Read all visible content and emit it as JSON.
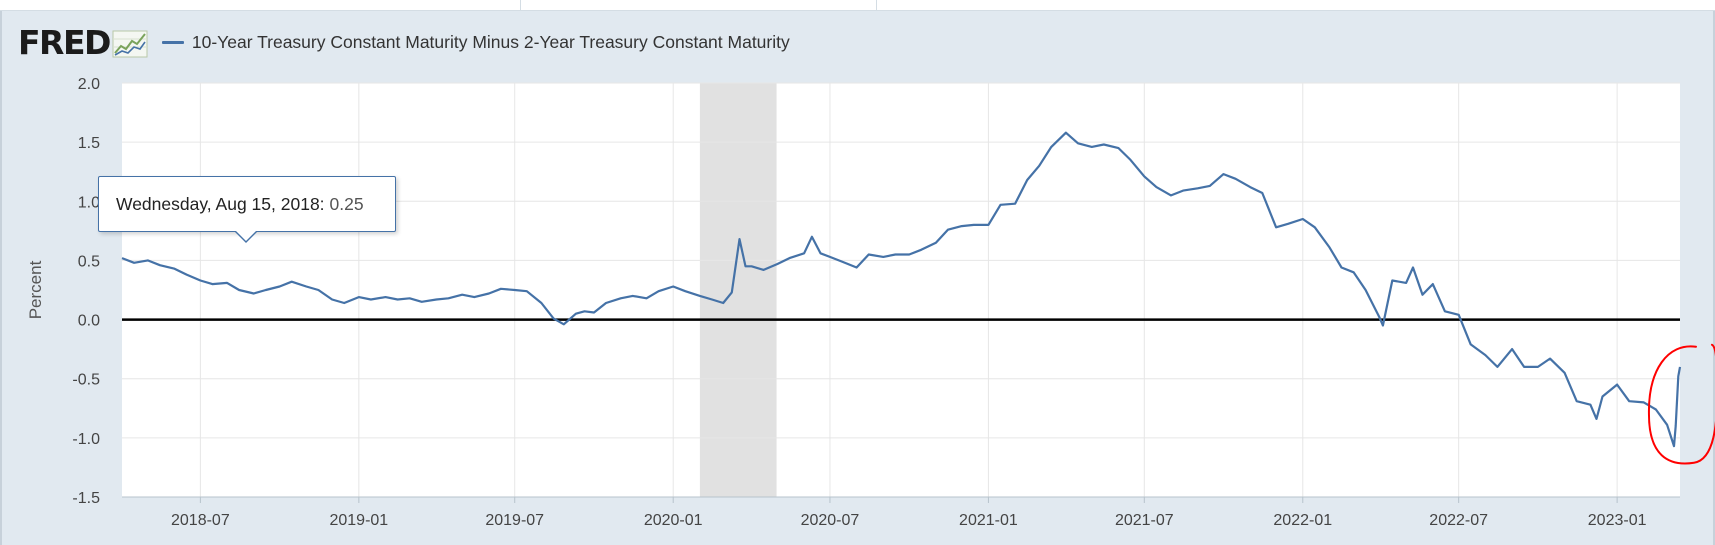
{
  "header": {
    "logo_text": "FRED",
    "series_title": "10-Year Treasury Constant Maturity Minus 2-Year Treasury Constant Maturity"
  },
  "tooltip": {
    "date": "Wednesday, Aug 15, 2018:",
    "value": "0.25"
  },
  "colors": {
    "series": "#4572a7",
    "zero_line": "#000000",
    "recession": "#e1e1e1",
    "annotation": "#ff0000",
    "background": "#e1e9f0"
  },
  "chart_data": {
    "type": "line",
    "title": "10-Year Treasury Constant Maturity Minus 2-Year Treasury Constant Maturity",
    "ylabel": "Percent",
    "xlabel": "",
    "ylim": [
      -1.5,
      2.0
    ],
    "yticks": [
      2.0,
      1.5,
      1.0,
      0.5,
      0.0,
      -0.5,
      -1.0,
      -1.5
    ],
    "ytick_labels": [
      "2.0",
      "1.5",
      "1.0",
      "0.5",
      "0.0",
      "-0.5",
      "-1.0",
      "-1.5"
    ],
    "xlim": [
      "2018-04-01",
      "2023-03-15"
    ],
    "xticks": [
      "2018-07-01",
      "2019-01-01",
      "2019-07-01",
      "2020-01-01",
      "2020-07-01",
      "2021-01-01",
      "2021-07-01",
      "2022-01-01",
      "2022-07-01",
      "2023-01-01"
    ],
    "xtick_labels": [
      "2018-07",
      "2019-01",
      "2019-07",
      "2020-01",
      "2020-07",
      "2021-01",
      "2021-07",
      "2022-01",
      "2022-07",
      "2023-01"
    ],
    "recession": {
      "start": "2020-02-01",
      "end": "2020-04-30"
    },
    "reference_line": 0.0,
    "series": [
      {
        "name": "10-Year Treasury Constant Maturity Minus 2-Year Treasury Constant Maturity",
        "points": [
          [
            "2018-04-01",
            0.52
          ],
          [
            "2018-04-15",
            0.48
          ],
          [
            "2018-05-01",
            0.5
          ],
          [
            "2018-05-15",
            0.46
          ],
          [
            "2018-06-01",
            0.43
          ],
          [
            "2018-06-15",
            0.38
          ],
          [
            "2018-07-01",
            0.33
          ],
          [
            "2018-07-15",
            0.3
          ],
          [
            "2018-08-01",
            0.31
          ],
          [
            "2018-08-15",
            0.25
          ],
          [
            "2018-09-01",
            0.22
          ],
          [
            "2018-09-15",
            0.25
          ],
          [
            "2018-10-01",
            0.28
          ],
          [
            "2018-10-15",
            0.32
          ],
          [
            "2018-11-01",
            0.28
          ],
          [
            "2018-11-15",
            0.25
          ],
          [
            "2018-12-01",
            0.17
          ],
          [
            "2018-12-15",
            0.14
          ],
          [
            "2019-01-01",
            0.19
          ],
          [
            "2019-01-15",
            0.17
          ],
          [
            "2019-02-01",
            0.19
          ],
          [
            "2019-02-15",
            0.17
          ],
          [
            "2019-03-01",
            0.18
          ],
          [
            "2019-03-15",
            0.15
          ],
          [
            "2019-04-01",
            0.17
          ],
          [
            "2019-04-15",
            0.18
          ],
          [
            "2019-05-01",
            0.21
          ],
          [
            "2019-05-15",
            0.19
          ],
          [
            "2019-06-01",
            0.22
          ],
          [
            "2019-06-15",
            0.26
          ],
          [
            "2019-07-01",
            0.25
          ],
          [
            "2019-07-15",
            0.24
          ],
          [
            "2019-08-01",
            0.14
          ],
          [
            "2019-08-15",
            0.01
          ],
          [
            "2019-08-27",
            -0.04
          ],
          [
            "2019-09-10",
            0.05
          ],
          [
            "2019-09-20",
            0.07
          ],
          [
            "2019-10-01",
            0.06
          ],
          [
            "2019-10-15",
            0.14
          ],
          [
            "2019-11-01",
            0.18
          ],
          [
            "2019-11-15",
            0.2
          ],
          [
            "2019-12-01",
            0.18
          ],
          [
            "2019-12-15",
            0.24
          ],
          [
            "2020-01-01",
            0.28
          ],
          [
            "2020-01-15",
            0.24
          ],
          [
            "2020-02-01",
            0.2
          ],
          [
            "2020-02-15",
            0.17
          ],
          [
            "2020-02-28",
            0.14
          ],
          [
            "2020-03-09",
            0.23
          ],
          [
            "2020-03-18",
            0.68
          ],
          [
            "2020-03-25",
            0.45
          ],
          [
            "2020-04-01",
            0.45
          ],
          [
            "2020-04-15",
            0.42
          ],
          [
            "2020-05-01",
            0.47
          ],
          [
            "2020-05-15",
            0.52
          ],
          [
            "2020-06-01",
            0.56
          ],
          [
            "2020-06-10",
            0.7
          ],
          [
            "2020-06-20",
            0.56
          ],
          [
            "2020-07-01",
            0.53
          ],
          [
            "2020-07-15",
            0.49
          ],
          [
            "2020-08-01",
            0.44
          ],
          [
            "2020-08-15",
            0.55
          ],
          [
            "2020-09-01",
            0.53
          ],
          [
            "2020-09-15",
            0.55
          ],
          [
            "2020-10-01",
            0.55
          ],
          [
            "2020-10-15",
            0.59
          ],
          [
            "2020-11-01",
            0.65
          ],
          [
            "2020-11-15",
            0.76
          ],
          [
            "2020-12-01",
            0.79
          ],
          [
            "2020-12-15",
            0.8
          ],
          [
            "2021-01-01",
            0.8
          ],
          [
            "2021-01-15",
            0.97
          ],
          [
            "2021-02-01",
            0.98
          ],
          [
            "2021-02-15",
            1.18
          ],
          [
            "2021-03-01",
            1.3
          ],
          [
            "2021-03-15",
            1.46
          ],
          [
            "2021-04-01",
            1.58
          ],
          [
            "2021-04-15",
            1.49
          ],
          [
            "2021-05-01",
            1.46
          ],
          [
            "2021-05-15",
            1.48
          ],
          [
            "2021-06-01",
            1.45
          ],
          [
            "2021-06-15",
            1.35
          ],
          [
            "2021-07-01",
            1.21
          ],
          [
            "2021-07-15",
            1.12
          ],
          [
            "2021-08-01",
            1.05
          ],
          [
            "2021-08-15",
            1.09
          ],
          [
            "2021-09-01",
            1.11
          ],
          [
            "2021-09-15",
            1.13
          ],
          [
            "2021-10-01",
            1.23
          ],
          [
            "2021-10-15",
            1.19
          ],
          [
            "2021-11-01",
            1.12
          ],
          [
            "2021-11-15",
            1.07
          ],
          [
            "2021-12-01",
            0.78
          ],
          [
            "2021-12-15",
            0.81
          ],
          [
            "2022-01-01",
            0.85
          ],
          [
            "2022-01-15",
            0.78
          ],
          [
            "2022-02-01",
            0.61
          ],
          [
            "2022-02-15",
            0.44
          ],
          [
            "2022-03-01",
            0.4
          ],
          [
            "2022-03-15",
            0.25
          ],
          [
            "2022-03-31",
            0.02
          ],
          [
            "2022-04-04",
            -0.05
          ],
          [
            "2022-04-15",
            0.33
          ],
          [
            "2022-05-01",
            0.31
          ],
          [
            "2022-05-09",
            0.44
          ],
          [
            "2022-05-20",
            0.21
          ],
          [
            "2022-06-01",
            0.3
          ],
          [
            "2022-06-15",
            0.07
          ],
          [
            "2022-07-01",
            0.04
          ],
          [
            "2022-07-15",
            -0.21
          ],
          [
            "2022-08-01",
            -0.3
          ],
          [
            "2022-08-15",
            -0.4
          ],
          [
            "2022-09-01",
            -0.25
          ],
          [
            "2022-09-15",
            -0.4
          ],
          [
            "2022-10-01",
            -0.4
          ],
          [
            "2022-10-15",
            -0.33
          ],
          [
            "2022-11-01",
            -0.45
          ],
          [
            "2022-11-15",
            -0.69
          ],
          [
            "2022-12-01",
            -0.72
          ],
          [
            "2022-12-08",
            -0.84
          ],
          [
            "2022-12-15",
            -0.65
          ],
          [
            "2023-01-01",
            -0.55
          ],
          [
            "2023-01-15",
            -0.69
          ],
          [
            "2023-02-01",
            -0.7
          ],
          [
            "2023-02-15",
            -0.76
          ],
          [
            "2023-02-28",
            -0.89
          ],
          [
            "2023-03-08",
            -1.07
          ],
          [
            "2023-03-10",
            -0.9
          ],
          [
            "2023-03-13",
            -0.48
          ],
          [
            "2023-03-15",
            -0.4
          ]
        ]
      }
    ]
  }
}
